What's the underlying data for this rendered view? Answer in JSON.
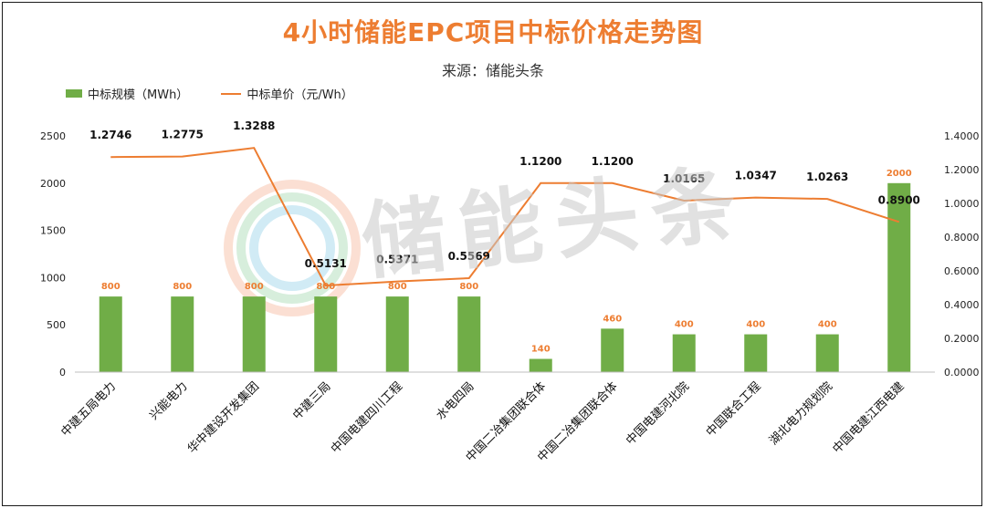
{
  "header": {
    "title": "4小时储能EPC项目中标价格走势图",
    "subtitle": "来源：储能头条"
  },
  "legend": {
    "bar_label": "中标规模（MWh）",
    "line_label": "中标单价（元/Wh）"
  },
  "watermark": {
    "text": "储能头条"
  },
  "colors": {
    "bar": "#70ad47",
    "line": "#ed7d31",
    "bar_label": "#ed7d31",
    "title": "#ed7d31"
  },
  "chart_data": {
    "type": "bar",
    "categories": [
      "中建五局电力",
      "兴能电力",
      "华中建设开发集团",
      "中建三局",
      "中国电建四川工程",
      "水电四局",
      "中国二冶集团联合体",
      "中国二冶集团联合体",
      "中国电建河北院",
      "中国联合工程",
      "湖北电力规划院",
      "中国电建江西电建"
    ],
    "series": [
      {
        "name": "中标规模（MWh）",
        "type": "bar",
        "axis": "left",
        "values": [
          800,
          800,
          800,
          800,
          800,
          800,
          140,
          460,
          400,
          400,
          400,
          2000
        ],
        "labels": [
          "800",
          "800",
          "800",
          "800",
          "800",
          "800",
          "140",
          "460",
          "400",
          "400",
          "400",
          "2000"
        ]
      },
      {
        "name": "中标单价（元/Wh）",
        "type": "line",
        "axis": "right",
        "values": [
          1.2746,
          1.2775,
          1.3288,
          0.5131,
          0.5371,
          0.5569,
          1.12,
          1.12,
          1.0165,
          1.0347,
          1.0263,
          0.89
        ],
        "labels": [
          "1.2746",
          "1.2775",
          "1.3288",
          "0.5131",
          "0.5371",
          "0.5569",
          "1.1200",
          "1.1200",
          "1.0165",
          "1.0347",
          "1.0263",
          "0.8900"
        ]
      }
    ],
    "y_left": {
      "min": 0,
      "max": 2500,
      "ticks": [
        "0",
        "500",
        "1000",
        "1500",
        "2000",
        "2500"
      ]
    },
    "y_right": {
      "min": 0,
      "max": 1.4,
      "ticks": [
        "0.0000",
        "0.2000",
        "0.4000",
        "0.6000",
        "0.8000",
        "1.0000",
        "1.2000",
        "1.4000"
      ]
    },
    "legend_position": "top-left",
    "grid": false
  }
}
